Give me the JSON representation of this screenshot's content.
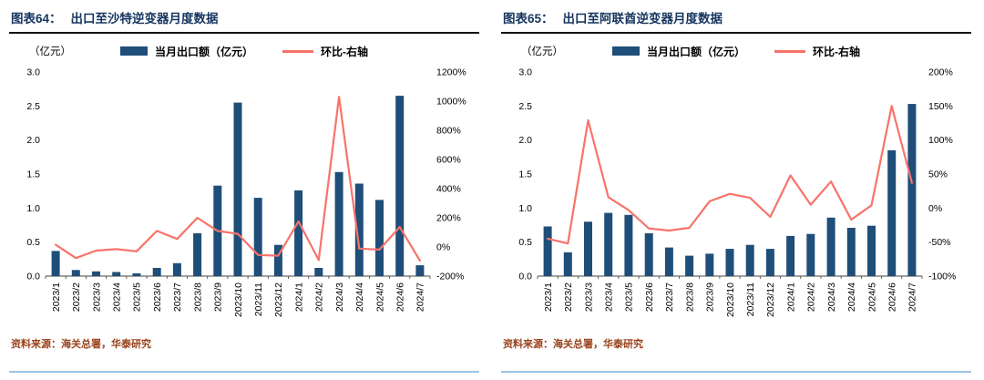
{
  "colors": {
    "bar": "#1F4E79",
    "line": "#F8736A",
    "title": "#15355E",
    "source": "#98421A",
    "axis": "#404040",
    "divider": "#9DC3E6",
    "tick_text": "#000000"
  },
  "panels": [
    {
      "figure_label": "图表64：",
      "title": "出口至沙特逆变器月度数据",
      "unit_label": "（亿元）",
      "legend": [
        {
          "label": "当月出口额（亿元）",
          "type": "bar"
        },
        {
          "label": "环比-右轴",
          "type": "line"
        }
      ],
      "source": "资料来源：海关总署，华泰研究"
    },
    {
      "figure_label": "图表65：",
      "title": "出口至阿联酋逆变器月度数据",
      "unit_label": "（亿元）",
      "legend": [
        {
          "label": "当月出口额（亿元）",
          "type": "bar"
        },
        {
          "label": "环比-右轴",
          "type": "line"
        }
      ],
      "source": "资料来源：海关总署，华泰研究"
    }
  ],
  "chart_data": [
    {
      "type": "bar",
      "title": "出口至沙特逆变器月度数据",
      "categories": [
        "2023/1",
        "2023/2",
        "2023/3",
        "2023/4",
        "2023/5",
        "2023/6",
        "2023/7",
        "2023/8",
        "2023/9",
        "2023/10",
        "2023/11",
        "2023/12",
        "2024/1",
        "2024/2",
        "2024/3",
        "2024/4",
        "2024/5",
        "2024/6",
        "2024/7"
      ],
      "series": [
        {
          "name": "当月出口额（亿元）",
          "type": "bar",
          "axis": "left",
          "values": [
            0.37,
            0.09,
            0.07,
            0.06,
            0.04,
            0.12,
            0.19,
            0.63,
            1.33,
            2.55,
            1.15,
            0.46,
            1.26,
            0.12,
            1.53,
            1.36,
            1.12,
            2.65,
            0.16
          ]
        },
        {
          "name": "环比-右轴",
          "type": "line",
          "axis": "right",
          "values": [
            15,
            -76,
            -25,
            -15,
            -30,
            110,
            55,
            200,
            110,
            90,
            -55,
            -60,
            175,
            -90,
            1030,
            -11,
            -18,
            137,
            -94
          ]
        }
      ],
      "left_axis": {
        "min": 0,
        "max": 3,
        "tick_step": 0.5,
        "decimals": 1,
        "label": "（亿元）"
      },
      "right_axis": {
        "min": -200,
        "max": 1200,
        "tick_step": 200,
        "suffix": "%"
      },
      "grid": false,
      "legend_position": "top"
    },
    {
      "type": "bar",
      "title": "出口至阿联酋逆变器月度数据",
      "categories": [
        "2023/1",
        "2023/2",
        "2023/3",
        "2023/4",
        "2023/5",
        "2023/6",
        "2023/7",
        "2023/8",
        "2023/9",
        "2023/10",
        "2023/11",
        "2023/12",
        "2024/1",
        "2024/2",
        "2024/3",
        "2024/4",
        "2024/5",
        "2024/6",
        "2024/7"
      ],
      "series": [
        {
          "name": "当月出口额（亿元）",
          "type": "bar",
          "axis": "left",
          "values": [
            0.73,
            0.35,
            0.8,
            0.93,
            0.9,
            0.63,
            0.42,
            0.3,
            0.33,
            0.4,
            0.46,
            0.4,
            0.59,
            0.62,
            0.86,
            0.71,
            0.74,
            1.85,
            2.53
          ]
        },
        {
          "name": "环比-右轴",
          "type": "line",
          "axis": "right",
          "values": [
            -45,
            -52,
            129,
            16,
            -3,
            -30,
            -33,
            -29,
            10,
            21,
            15,
            -13,
            48,
            5,
            39,
            -17,
            4,
            150,
            37
          ]
        }
      ],
      "left_axis": {
        "min": 0,
        "max": 3,
        "tick_step": 0.5,
        "decimals": 1,
        "label": "（亿元）"
      },
      "right_axis": {
        "min": -100,
        "max": 200,
        "tick_step": 50,
        "suffix": "%"
      },
      "grid": false,
      "legend_position": "top"
    }
  ]
}
